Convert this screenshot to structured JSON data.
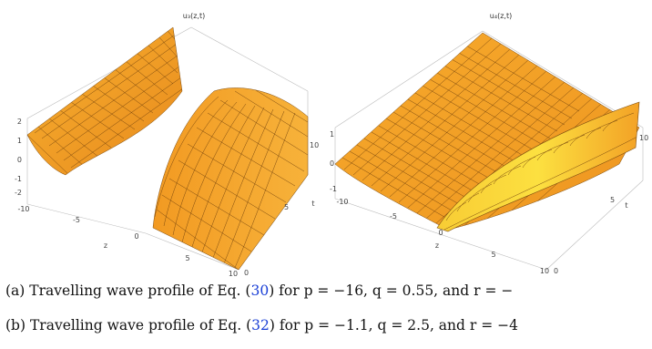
{
  "plots": [
    {
      "title": "u₃(z,t)",
      "xlabel": "z",
      "ylabel": "t",
      "x_ticks": [
        "-10",
        "-5",
        "0",
        "5",
        "10"
      ],
      "t_ticks": [
        "0",
        "5",
        "10"
      ],
      "z_ticks": [
        "2",
        "1",
        "0",
        "-1",
        "-2"
      ]
    },
    {
      "title": "u₄(z,t)",
      "xlabel": "z",
      "ylabel": "t",
      "x_ticks": [
        "-10",
        "-5",
        "0",
        "5",
        "10"
      ],
      "t_ticks": [
        "0",
        "5",
        "10"
      ],
      "z_ticks": [
        "1",
        "0",
        "-1"
      ]
    }
  ],
  "captions": [
    {
      "label": "(a)",
      "text_before": "Travelling wave profile of Eq. (",
      "ref": "30",
      "text_after": ") for p = −16, q = 0.55, and r = −"
    },
    {
      "label": "(b)",
      "text_before": "Travelling wave profile of Eq. (",
      "ref": "32",
      "text_after": ") for p = −1.1, q = 2.5, and r = −4"
    }
  ],
  "colors": {
    "surface_dark": "#e0821c",
    "surface_mid": "#f39c22",
    "surface_light": "#fbd23a",
    "link": "#1a3fd6"
  }
}
